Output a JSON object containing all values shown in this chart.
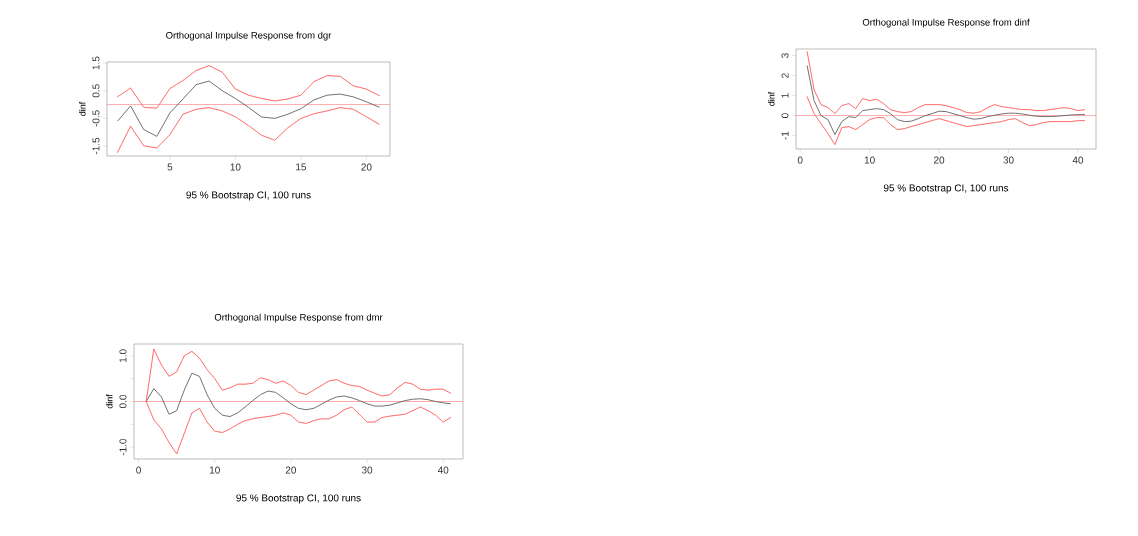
{
  "chart_data": [
    {
      "type": "line",
      "title": "Orthogonal Impulse Response from dgr",
      "xlabel": "95 % Bootstrap CI,  100 runs",
      "ylabel": "dinf",
      "x": [
        1,
        2,
        3,
        4,
        5,
        6,
        7,
        8,
        9,
        10,
        11,
        12,
        13,
        14,
        15,
        16,
        17,
        18,
        19,
        20,
        21
      ],
      "xlim": [
        0.2,
        21.8
      ],
      "xticks": [
        5,
        10,
        15,
        20
      ],
      "ylim": [
        -1.86,
        1.54
      ],
      "yticks": [
        -1.5,
        -0.5,
        0.5,
        1.5
      ],
      "series": [
        {
          "color": "#606060",
          "line_style": "solid",
          "values": [
            -0.6,
            -0.05,
            -0.9,
            -1.15,
            -0.3,
            0.2,
            0.72,
            0.85,
            0.5,
            0.22,
            -0.1,
            -0.45,
            -0.5,
            -0.35,
            -0.15,
            0.17,
            0.34,
            0.38,
            0.28,
            0.1,
            -0.1
          ]
        },
        {
          "color": "#ff6060",
          "line_style": "dotted",
          "values": [
            0.28,
            0.6,
            -0.1,
            -0.13,
            0.58,
            0.87,
            1.23,
            1.41,
            1.17,
            0.56,
            0.34,
            0.22,
            0.13,
            0.2,
            0.34,
            0.83,
            1.05,
            1.02,
            0.68,
            0.56,
            0.32
          ]
        },
        {
          "color": "#ff6060",
          "line_style": "dotted",
          "values": [
            -1.73,
            -0.78,
            -1.49,
            -1.57,
            -1.09,
            -0.35,
            -0.17,
            -0.11,
            -0.23,
            -0.44,
            -0.76,
            -1.11,
            -1.29,
            -0.84,
            -0.5,
            -0.33,
            -0.23,
            -0.11,
            -0.17,
            -0.44,
            -0.72
          ]
        }
      ],
      "ref_lines": [
        {
          "axis": "y",
          "value": 0,
          "color": "#ff5050"
        }
      ]
    },
    {
      "type": "line",
      "title": "Orthogonal Impulse Response from dinf",
      "xlabel": "95 % Bootstrap CI,  100 runs",
      "ylabel": "dinf",
      "x": [
        1,
        2,
        3,
        4,
        5,
        6,
        7,
        8,
        9,
        10,
        11,
        12,
        13,
        14,
        15,
        16,
        17,
        18,
        19,
        20,
        21,
        22,
        23,
        24,
        25,
        26,
        27,
        28,
        29,
        30,
        31,
        32,
        33,
        34,
        35,
        36,
        37,
        38,
        39,
        40,
        41
      ],
      "xlim": [
        -0.6,
        42.6
      ],
      "xticks": [
        0,
        10,
        20,
        30,
        40
      ],
      "ylim": [
        -1.67,
        3.33
      ],
      "yticks": [
        -1,
        0,
        1,
        2,
        3
      ],
      "series": [
        {
          "color": "#606060",
          "line_style": "solid",
          "values": [
            2.5,
            0.75,
            0.0,
            -0.2,
            -0.95,
            -0.3,
            -0.05,
            -0.1,
            0.25,
            0.3,
            0.35,
            0.3,
            0.1,
            -0.2,
            -0.3,
            -0.28,
            -0.15,
            0,
            0.1,
            0.22,
            0.2,
            0.1,
            0,
            -0.1,
            -0.18,
            -0.15,
            -0.05,
            0.02,
            0.08,
            0.12,
            0.12,
            0.08,
            0.02,
            -0.03,
            -0.05,
            -0.05,
            -0.03,
            0,
            0.03,
            0.05,
            0.05
          ]
        },
        {
          "color": "#ff6060",
          "line_style": "dotted",
          "values": [
            3.2,
            1.3,
            0.55,
            0.4,
            0.1,
            0.5,
            0.6,
            0.35,
            0.85,
            0.75,
            0.82,
            0.6,
            0.3,
            0.2,
            0.15,
            0.2,
            0.4,
            0.55,
            0.55,
            0.55,
            0.5,
            0.4,
            0.3,
            0.15,
            0.12,
            0.2,
            0.4,
            0.55,
            0.45,
            0.4,
            0.35,
            0.3,
            0.3,
            0.25,
            0.25,
            0.3,
            0.35,
            0.4,
            0.35,
            0.25,
            0.3
          ]
        },
        {
          "color": "#ff6060",
          "line_style": "dotted",
          "values": [
            0.95,
            0.1,
            -0.4,
            -0.9,
            -1.45,
            -0.6,
            -0.55,
            -0.7,
            -0.45,
            -0.2,
            -0.1,
            -0.1,
            -0.45,
            -0.7,
            -0.65,
            -0.55,
            -0.45,
            -0.35,
            -0.25,
            -0.15,
            -0.25,
            -0.35,
            -0.45,
            -0.55,
            -0.5,
            -0.45,
            -0.4,
            -0.35,
            -0.3,
            -0.2,
            -0.15,
            -0.35,
            -0.5,
            -0.45,
            -0.35,
            -0.3,
            -0.3,
            -0.3,
            -0.3,
            -0.25,
            -0.25
          ]
        }
      ],
      "ref_lines": [
        {
          "axis": "y",
          "value": 0,
          "color": "#ff5050"
        }
      ]
    },
    {
      "type": "line",
      "title": "Orthogonal Impulse Response from dmr",
      "xlabel": "95 % Bootstrap CI,  100 runs",
      "ylabel": "dinf",
      "x": [
        1,
        2,
        3,
        4,
        5,
        6,
        7,
        8,
        9,
        10,
        11,
        12,
        13,
        14,
        15,
        16,
        17,
        18,
        19,
        20,
        21,
        22,
        23,
        24,
        25,
        26,
        27,
        28,
        29,
        30,
        31,
        32,
        33,
        34,
        35,
        36,
        37,
        38,
        39,
        40,
        41
      ],
      "xlim": [
        -0.6,
        42.6
      ],
      "xticks": [
        0,
        10,
        20,
        30,
        40
      ],
      "ylim": [
        -1.26,
        1.26
      ],
      "yticks": [
        {
          "value": -1,
          "label": "-1.0"
        },
        {
          "value": -0.5,
          "label": null
        },
        {
          "value": 0,
          "label": "0.0"
        },
        {
          "value": 0.5,
          "label": null
        },
        {
          "value": 1,
          "label": "1.0"
        }
      ],
      "series": [
        {
          "color": "#606060",
          "line_style": "solid",
          "values": [
            0,
            0.28,
            0.1,
            -0.28,
            -0.2,
            0.25,
            0.62,
            0.55,
            0.15,
            -0.15,
            -0.3,
            -0.33,
            -0.25,
            -0.12,
            0.02,
            0.15,
            0.23,
            0.2,
            0.08,
            -0.05,
            -0.15,
            -0.18,
            -0.15,
            -0.06,
            0.03,
            0.1,
            0.12,
            0.08,
            0.02,
            -0.05,
            -0.1,
            -0.1,
            -0.08,
            -0.03,
            0.02,
            0.05,
            0.06,
            0.04,
            0,
            -0.03,
            -0.05
          ]
        },
        {
          "color": "#ff6060",
          "line_style": "dotted",
          "values": [
            0,
            1.15,
            0.8,
            0.55,
            0.65,
            1.0,
            1.1,
            0.95,
            0.7,
            0.5,
            0.25,
            0.3,
            0.38,
            0.38,
            0.4,
            0.52,
            0.48,
            0.4,
            0.45,
            0.35,
            0.2,
            0.15,
            0.25,
            0.35,
            0.45,
            0.48,
            0.4,
            0.35,
            0.33,
            0.25,
            0.18,
            0.12,
            0.15,
            0.3,
            0.42,
            0.38,
            0.27,
            0.25,
            0.27,
            0.27,
            0.18
          ]
        },
        {
          "color": "#ff6060",
          "line_style": "dotted",
          "values": [
            0,
            -0.4,
            -0.6,
            -0.9,
            -1.15,
            -0.7,
            -0.25,
            -0.15,
            -0.45,
            -0.65,
            -0.68,
            -0.6,
            -0.5,
            -0.42,
            -0.38,
            -0.35,
            -0.33,
            -0.3,
            -0.25,
            -0.3,
            -0.45,
            -0.48,
            -0.42,
            -0.38,
            -0.38,
            -0.3,
            -0.18,
            -0.12,
            -0.28,
            -0.45,
            -0.45,
            -0.35,
            -0.32,
            -0.3,
            -0.28,
            -0.2,
            -0.12,
            -0.2,
            -0.3,
            -0.45,
            -0.35
          ]
        }
      ],
      "ref_lines": [
        {
          "axis": "y",
          "value": 0,
          "color": "#ff5050"
        }
      ]
    }
  ]
}
